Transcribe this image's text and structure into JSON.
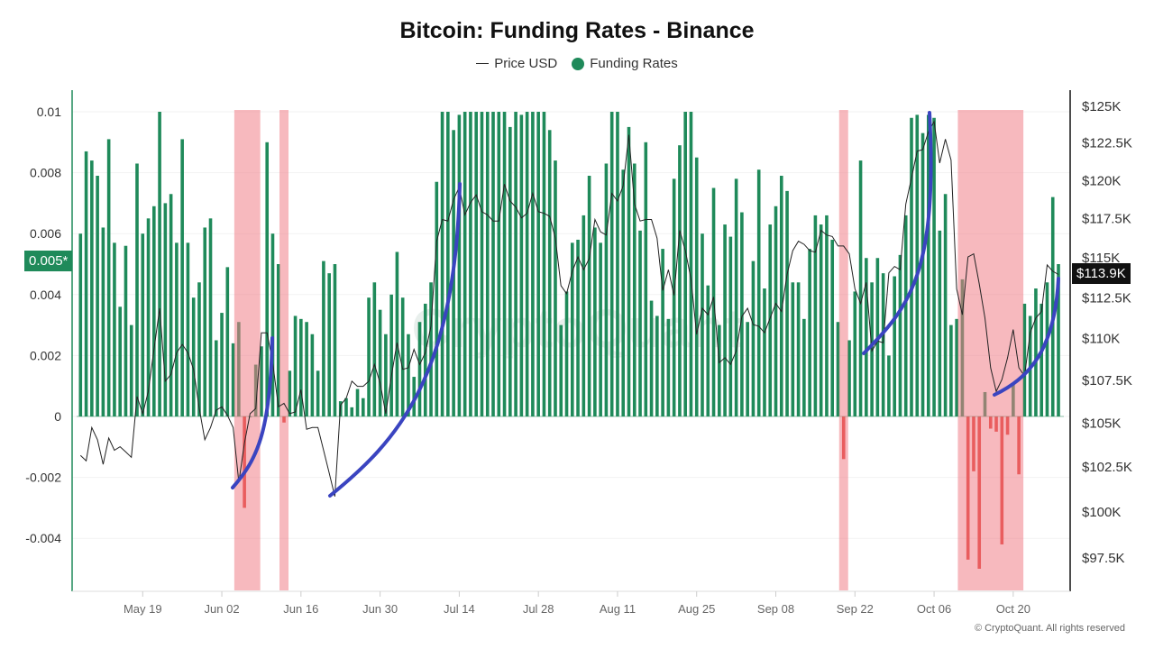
{
  "chart_data": {
    "type": "bar+line",
    "title": "Bitcoin: Funding Rates - Binance",
    "legend": {
      "placement": "top-center",
      "entries": [
        {
          "name": "Price USD",
          "symbol": "line",
          "color": "#222222"
        },
        {
          "name": "Funding Rates",
          "symbol": "dot",
          "color": "#1f8a5a"
        }
      ]
    },
    "x": [
      "May 08",
      "May 09",
      "May 10",
      "May 11",
      "May 12",
      "May 13",
      "May 14",
      "May 15",
      "May 16",
      "May 17",
      "May 18",
      "May 19",
      "May 20",
      "May 21",
      "May 22",
      "May 23",
      "May 24",
      "May 25",
      "May 26",
      "May 27",
      "May 28",
      "May 29",
      "May 30",
      "May 31",
      "Jun 01",
      "Jun 02",
      "Jun 03",
      "Jun 04",
      "Jun 05",
      "Jun 06",
      "Jun 07",
      "Jun 08",
      "Jun 09",
      "Jun 10",
      "Jun 11",
      "Jun 12",
      "Jun 13",
      "Jun 14",
      "Jun 15",
      "Jun 16",
      "Jun 17",
      "Jun 18",
      "Jun 19",
      "Jun 20",
      "Jun 21",
      "Jun 22",
      "Jun 23",
      "Jun 24",
      "Jun 25",
      "Jun 26",
      "Jun 27",
      "Jun 28",
      "Jun 29",
      "Jun 30",
      "Jul 01",
      "Jul 02",
      "Jul 03",
      "Jul 04",
      "Jul 05",
      "Jul 06",
      "Jul 07",
      "Jul 08",
      "Jul 09",
      "Jul 10",
      "Jul 11",
      "Jul 12",
      "Jul 13",
      "Jul 14",
      "Jul 15",
      "Jul 16",
      "Jul 17",
      "Jul 18",
      "Jul 19",
      "Jul 20",
      "Jul 21",
      "Jul 22",
      "Jul 23",
      "Jul 24",
      "Jul 25",
      "Jul 26",
      "Jul 27",
      "Jul 28",
      "Jul 29",
      "Jul 30",
      "Jul 31",
      "Aug 01",
      "Aug 02",
      "Aug 03",
      "Aug 04",
      "Aug 05",
      "Aug 06",
      "Aug 07",
      "Aug 08",
      "Aug 09",
      "Aug 10",
      "Aug 11",
      "Aug 12",
      "Aug 13",
      "Aug 14",
      "Aug 15",
      "Aug 16",
      "Aug 17",
      "Aug 18",
      "Aug 19",
      "Aug 20",
      "Aug 21",
      "Aug 22",
      "Aug 23",
      "Aug 24",
      "Aug 25",
      "Aug 26",
      "Aug 27",
      "Aug 28",
      "Aug 29",
      "Aug 30",
      "Aug 31",
      "Sep 01",
      "Sep 02",
      "Sep 03",
      "Sep 04",
      "Sep 05",
      "Sep 06",
      "Sep 07",
      "Sep 08",
      "Sep 09",
      "Sep 10",
      "Sep 11",
      "Sep 12",
      "Sep 13",
      "Sep 14",
      "Sep 15",
      "Sep 16",
      "Sep 17",
      "Sep 18",
      "Sep 19",
      "Sep 20",
      "Sep 21",
      "Sep 22",
      "Sep 23",
      "Sep 24",
      "Sep 25",
      "Sep 26",
      "Sep 27",
      "Sep 28",
      "Sep 29",
      "Sep 30",
      "Oct 01",
      "Oct 02",
      "Oct 03",
      "Oct 04",
      "Oct 05",
      "Oct 06",
      "Oct 07",
      "Oct 08",
      "Oct 09",
      "Oct 10",
      "Oct 11",
      "Oct 12",
      "Oct 13",
      "Oct 14",
      "Oct 15",
      "Oct 16",
      "Oct 17",
      "Oct 18",
      "Oct 19",
      "Oct 20",
      "Oct 21",
      "Oct 22",
      "Oct 23",
      "Oct 24",
      "Oct 25",
      "Oct 26",
      "Oct 27",
      "Oct 28"
    ],
    "series": [
      {
        "name": "Funding Rates",
        "type": "bar",
        "axis": "left",
        "color_positive": "#1f8a5a",
        "color_negative": "#e0332c",
        "values": [
          0.006,
          0.0087,
          0.0084,
          0.0079,
          0.0062,
          0.0091,
          0.0057,
          0.0036,
          0.0056,
          0.003,
          0.0083,
          0.006,
          0.0065,
          0.0069,
          0.01,
          0.007,
          0.0073,
          0.0057,
          0.0091,
          0.0057,
          0.0039,
          0.0044,
          0.0062,
          0.0065,
          0.0025,
          0.0034,
          0.0049,
          0.0024,
          0.0031,
          -0.003,
          0,
          0.0017,
          0.0023,
          0.009,
          0.006,
          0.005,
          -0.0002,
          0.0015,
          0.0033,
          0.0032,
          0.0031,
          0.0027,
          0.0015,
          0.0051,
          0.0047,
          0.005,
          0.0005,
          0.0006,
          0.0003,
          0.0009,
          0.0006,
          0.0039,
          0.0044,
          0.0035,
          0.0027,
          0.004,
          0.0054,
          0.0039,
          0.0027,
          0.0013,
          0.0031,
          0.0037,
          0.0044,
          0.0077,
          0.01,
          0.01,
          0.0094,
          0.0099,
          0.01,
          0.01,
          0.01,
          0.01,
          0.01,
          0.01,
          0.01,
          0.01,
          0.0095,
          0.01,
          0.0099,
          0.01,
          0.01,
          0.01,
          0.01,
          0.0094,
          0.0084,
          0.003,
          0.0041,
          0.0057,
          0.0058,
          0.0066,
          0.0079,
          0.0062,
          0.0057,
          0.0083,
          0.01,
          0.01,
          0.0081,
          0.0095,
          0.0083,
          0.0061,
          0.009,
          0.0038,
          0.0033,
          0.0055,
          0.0032,
          0.0078,
          0.0089,
          0.01,
          0.01,
          0.0085,
          0.006,
          0.0043,
          0.0075,
          0.003,
          0.0063,
          0.0059,
          0.0078,
          0.0067,
          0.0031,
          0.0051,
          0.0081,
          0.0042,
          0.0063,
          0.0069,
          0.0079,
          0.0074,
          0.0044,
          0.0044,
          0.0032,
          0.0055,
          0.0066,
          0.0063,
          0.0066,
          0.0058,
          0.0031,
          -0.0014,
          0.0025,
          0.0041,
          0.0084,
          0.0052,
          0.0044,
          0.0052,
          0.0047,
          0.002,
          0.0046,
          0.0053,
          0.0066,
          0.0098,
          0.0099,
          0.0093,
          0.0099,
          0.0098,
          0.0061,
          0.0073,
          0.003,
          0.0032,
          0.0045,
          -0.0047,
          -0.0018,
          -0.005,
          0.0008,
          -0.0004,
          -0.0005,
          -0.0042,
          -0.0006,
          0.0011,
          -0.0019,
          0.0037,
          0.0033,
          0.0042,
          0.0037,
          0.0044,
          0.0072,
          0.005
        ]
      },
      {
        "name": "Price USD",
        "type": "line",
        "axis": "right",
        "unit": "K USD",
        "color": "#222222",
        "values": [
          103.1,
          102.8,
          104.7,
          104.0,
          102.6,
          104.1,
          103.4,
          103.6,
          103.3,
          103.0,
          106.5,
          105.5,
          106.8,
          109.3,
          111.8,
          107.4,
          107.8,
          109.1,
          109.6,
          109.1,
          108.1,
          105.8,
          104.0,
          104.7,
          105.7,
          105.9,
          105.4,
          104.7,
          101.6,
          103.8,
          105.5,
          105.8,
          110.3,
          110.3,
          108.5,
          105.9,
          106.1,
          105.5,
          105.6,
          106.9,
          104.6,
          104.7,
          104.7,
          103.4,
          102.1,
          100.8,
          106.0,
          106.4,
          107.4,
          107.1,
          107.1,
          107.4,
          108.4,
          107.3,
          105.5,
          107.7,
          109.7,
          108.1,
          108.2,
          109.3,
          108.4,
          109.1,
          110.7,
          116.0,
          117.4,
          117.3,
          118.7,
          119.5,
          117.7,
          118.5,
          119.0,
          117.9,
          117.7,
          117.3,
          117.3,
          119.7,
          118.6,
          118.2,
          117.5,
          117.8,
          119.1,
          117.9,
          117.8,
          117.6,
          116.2,
          113.2,
          112.7,
          114.1,
          115.0,
          114.2,
          114.9,
          117.4,
          116.6,
          116.4,
          119.1,
          118.6,
          119.6,
          123.0,
          118.4,
          117.3,
          117.4,
          117.4,
          116.2,
          112.9,
          114.2,
          112.6,
          116.7,
          115.4,
          113.6,
          110.2,
          111.8,
          111.4,
          112.5,
          108.5,
          108.8,
          108.4,
          109.2,
          111.3,
          111.8,
          110.8,
          110.7,
          110.3,
          111.2,
          112.1,
          111.6,
          113.9,
          115.4,
          116.0,
          115.8,
          115.4,
          115.3,
          116.7,
          116.4,
          116.3,
          115.7,
          115.7,
          115.2,
          113.0,
          112.1,
          113.4,
          109.2,
          109.8,
          109.7,
          114.0,
          114.4,
          114.2,
          118.4,
          120.1,
          121.9,
          122.0,
          123.2,
          123.9,
          121.1,
          122.7,
          121.3,
          113.0,
          111.4,
          115.0,
          115.2,
          113.3,
          111.2,
          108.2,
          106.8,
          107.5,
          108.8,
          110.5,
          108.2,
          107.7,
          110.3,
          111.2,
          111.6,
          114.5,
          114.1,
          113.9
        ]
      }
    ],
    "left_axis": {
      "ticks": [
        "0.01",
        "0.008",
        "0.006",
        "0.004",
        "0.002",
        "0",
        "-0.002",
        "-0.004"
      ],
      "tick_values": [
        0.01,
        0.008,
        0.006,
        0.004,
        0.002,
        0,
        -0.002,
        -0.004
      ],
      "range": [
        -0.0057,
        0.0105
      ],
      "color": "#1f8a5a"
    },
    "right_axis": {
      "scale": "log",
      "ticks": [
        "$125K",
        "$122.5K",
        "$120K",
        "$117.5K",
        "$115K",
        "$112.5K",
        "$110K",
        "$107.5K",
        "$105K",
        "$102.5K",
        "$100K",
        "$97.5K"
      ],
      "tick_values": [
        125,
        122.5,
        120,
        117.5,
        115,
        112.5,
        110,
        107.5,
        105,
        102.5,
        100,
        97.5
      ]
    },
    "x_ticks": [
      "May 19",
      "Jun 02",
      "Jun 16",
      "Jun 30",
      "Jul 14",
      "Jul 28",
      "Aug 11",
      "Aug 25",
      "Sep 08",
      "Sep 22",
      "Oct 06",
      "Oct 20"
    ],
    "grid": "horizontal",
    "highlighted_periods": [
      {
        "start": "Jun 05",
        "end": "Jun 08",
        "color": "#f08088"
      },
      {
        "start": "Jun 13",
        "end": "Jun 13",
        "color": "#f08088"
      },
      {
        "start": "Sep 20",
        "end": "Sep 20",
        "color": "#f08088"
      },
      {
        "start": "Oct 11",
        "end": "Oct 21",
        "color": "#f08088"
      }
    ],
    "annotation_color": "#3a44c0",
    "left_marker": {
      "label": "0.005*",
      "value": 0.005,
      "color": "#1f8a5a"
    },
    "price_marker": {
      "label": "$113.9K",
      "value": 113.9,
      "color": "#111111"
    }
  },
  "footer": "© CryptoQuant. All rights reserved",
  "watermark": "CryptoQuant"
}
